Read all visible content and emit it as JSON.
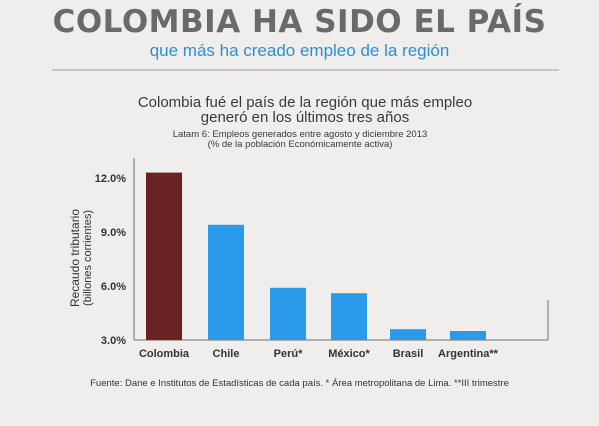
{
  "header": {
    "title": "COLOMBIA HA SIDO EL PAÍS",
    "subtitle": "que más ha creado empleo de la región"
  },
  "chart_data": {
    "type": "bar",
    "title_line1": "Colombia fué el país de la región que más empleo",
    "title_line2": "generó en los últimos tres años",
    "subtitle_line1": "Latam 6: Empleos generados entre agosto y diciembre 2013",
    "subtitle_line2": "(% de la población Económicamente activa)",
    "ylabel_line1": "Recaudo tributario",
    "ylabel_line2": "(billones corrientes)",
    "xlabel": "",
    "categories": [
      "Colombia",
      "Chile",
      "Perú*",
      "México*",
      "Brasil",
      "Argentina**"
    ],
    "values": [
      12.3,
      9.4,
      5.9,
      5.6,
      3.6,
      3.5
    ],
    "bar_colors": [
      "#6b2222",
      "#2b9ae8",
      "#2b9ae8",
      "#2b9ae8",
      "#2b9ae8",
      "#2b9ae8"
    ],
    "yticks": [
      "3.0%",
      "6.0%",
      "9.0%",
      "12.0%"
    ],
    "ytick_values": [
      3,
      6,
      9,
      12
    ],
    "ylim": [
      3,
      12.6
    ],
    "grid": false,
    "legend": "none"
  },
  "footer": {
    "source": "Fuente: Dane e Institutos  de Estadísticas de cada país. * Área metropolitana de Lima. **III trimestre"
  },
  "colors": {
    "background": "#f0eeec",
    "headline": "#6b6969",
    "accent_blue": "#2b8fd6",
    "colombia_bar": "#6b2222",
    "other_bars": "#2b9ae8"
  }
}
